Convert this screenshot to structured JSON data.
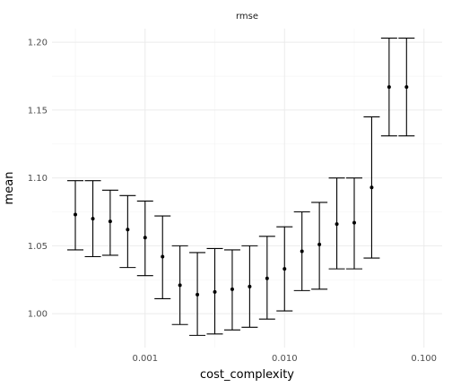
{
  "chart_data": {
    "type": "scatter",
    "title": "rmse",
    "xlabel": "cost_complexity",
    "ylabel": "mean",
    "x_scale": "log10",
    "xlim": [
      0.000215,
      0.135
    ],
    "ylim": [
      0.975,
      1.21
    ],
    "x_ticks": [
      0.001,
      0.01,
      0.1
    ],
    "x_tick_labels": [
      "0.001",
      "0.010",
      "0.100"
    ],
    "y_ticks": [
      1.0,
      1.05,
      1.1,
      1.15,
      1.2
    ],
    "y_tick_labels": [
      "1.00",
      "1.05",
      "1.10",
      "1.15",
      "1.20"
    ],
    "grid": true,
    "errorbars": true,
    "points": [
      {
        "x": 0.000316,
        "mean": 1.073,
        "lower": 1.047,
        "upper": 1.098
      },
      {
        "x": 0.000422,
        "mean": 1.07,
        "lower": 1.042,
        "upper": 1.098
      },
      {
        "x": 0.000562,
        "mean": 1.068,
        "lower": 1.043,
        "upper": 1.091
      },
      {
        "x": 0.00075,
        "mean": 1.062,
        "lower": 1.034,
        "upper": 1.087
      },
      {
        "x": 0.001,
        "mean": 1.056,
        "lower": 1.028,
        "upper": 1.083
      },
      {
        "x": 0.001334,
        "mean": 1.042,
        "lower": 1.011,
        "upper": 1.072
      },
      {
        "x": 0.001778,
        "mean": 1.021,
        "lower": 0.992,
        "upper": 1.05
      },
      {
        "x": 0.002371,
        "mean": 1.014,
        "lower": 0.984,
        "upper": 1.045
      },
      {
        "x": 0.003162,
        "mean": 1.016,
        "lower": 0.985,
        "upper": 1.048
      },
      {
        "x": 0.004217,
        "mean": 1.018,
        "lower": 0.988,
        "upper": 1.047
      },
      {
        "x": 0.005623,
        "mean": 1.02,
        "lower": 0.99,
        "upper": 1.05
      },
      {
        "x": 0.007499,
        "mean": 1.026,
        "lower": 0.996,
        "upper": 1.057
      },
      {
        "x": 0.01,
        "mean": 1.033,
        "lower": 1.002,
        "upper": 1.064
      },
      {
        "x": 0.013335,
        "mean": 1.046,
        "lower": 1.017,
        "upper": 1.075
      },
      {
        "x": 0.017783,
        "mean": 1.051,
        "lower": 1.018,
        "upper": 1.082
      },
      {
        "x": 0.023714,
        "mean": 1.066,
        "lower": 1.033,
        "upper": 1.1
      },
      {
        "x": 0.031623,
        "mean": 1.067,
        "lower": 1.033,
        "upper": 1.1
      },
      {
        "x": 0.04217,
        "mean": 1.093,
        "lower": 1.041,
        "upper": 1.145
      },
      {
        "x": 0.056234,
        "mean": 1.167,
        "lower": 1.131,
        "upper": 1.203
      },
      {
        "x": 0.074989,
        "mean": 1.167,
        "lower": 1.131,
        "upper": 1.203
      }
    ]
  }
}
